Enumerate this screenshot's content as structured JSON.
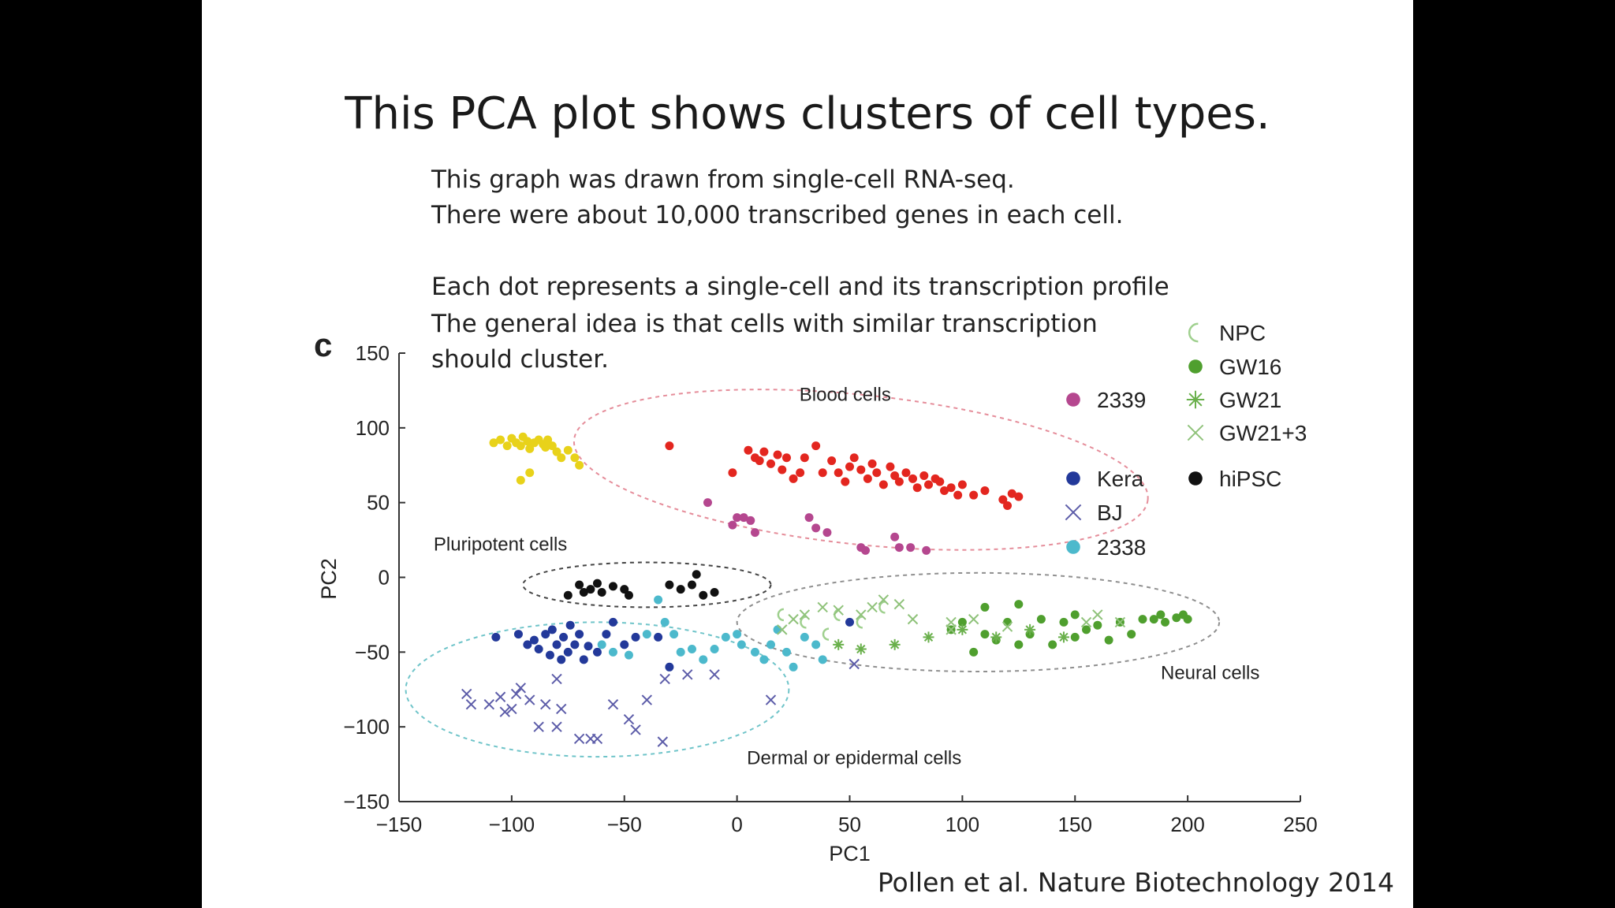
{
  "slide": {
    "title": "This PCA plot shows clusters of cell types.",
    "lines": [
      "This graph was drawn from single-cell RNA-seq.",
      "There were about 10,000 transcribed genes in each cell.",
      "Each dot represents a single-cell and its transcription profile",
      "The general idea is that cells with similar transcription",
      "should cluster."
    ],
    "citation": "Pollen et al. Nature Biotechnology 2014",
    "panel_label": "c"
  },
  "chart_data": {
    "type": "scatter",
    "title": "",
    "xlabel": "PC1",
    "ylabel": "PC2",
    "xlim": [
      -150,
      250
    ],
    "ylim": [
      -150,
      150
    ],
    "xticks": [
      -150,
      -100,
      -50,
      0,
      50,
      100,
      150,
      200,
      250
    ],
    "yticks": [
      -150,
      -100,
      -50,
      0,
      50,
      100,
      150
    ],
    "grid": false,
    "legend": {
      "placement": "top-right"
    },
    "series": [
      {
        "name": "2339",
        "marker": "dot",
        "color": "#b5478f",
        "points": [
          [
            -13,
            50
          ],
          [
            0,
            40
          ],
          [
            -2,
            35
          ],
          [
            3,
            40
          ],
          [
            6,
            38
          ],
          [
            8,
            30
          ],
          [
            32,
            40
          ],
          [
            35,
            33
          ],
          [
            40,
            30
          ],
          [
            55,
            20
          ],
          [
            57,
            18
          ],
          [
            70,
            27
          ],
          [
            72,
            20
          ],
          [
            77,
            20
          ],
          [
            84,
            18
          ]
        ]
      },
      {
        "name": "Kera",
        "marker": "dot",
        "color": "#23399a",
        "points": [
          [
            -107,
            -40
          ],
          [
            -97,
            -38
          ],
          [
            -93,
            -45
          ],
          [
            -90,
            -42
          ],
          [
            -88,
            -48
          ],
          [
            -85,
            -38
          ],
          [
            -83,
            -52
          ],
          [
            -82,
            -35
          ],
          [
            -80,
            -45
          ],
          [
            -78,
            -55
          ],
          [
            -77,
            -40
          ],
          [
            -75,
            -50
          ],
          [
            -74,
            -32
          ],
          [
            -72,
            -45
          ],
          [
            -70,
            -38
          ],
          [
            -68,
            -55
          ],
          [
            -66,
            -46
          ],
          [
            -62,
            -50
          ],
          [
            -58,
            -38
          ],
          [
            -55,
            -30
          ],
          [
            -50,
            -45
          ],
          [
            -45,
            -40
          ],
          [
            -35,
            -40
          ],
          [
            -30,
            -60
          ],
          [
            50,
            -30
          ]
        ]
      },
      {
        "name": "BJ",
        "marker": "x",
        "color": "#5d5da9",
        "points": [
          [
            -120,
            -78
          ],
          [
            -118,
            -85
          ],
          [
            -110,
            -85
          ],
          [
            -105,
            -80
          ],
          [
            -103,
            -90
          ],
          [
            -100,
            -88
          ],
          [
            -98,
            -78
          ],
          [
            -96,
            -74
          ],
          [
            -92,
            -82
          ],
          [
            -88,
            -100
          ],
          [
            -85,
            -85
          ],
          [
            -80,
            -68
          ],
          [
            -78,
            -88
          ],
          [
            -80,
            -100
          ],
          [
            -70,
            -108
          ],
          [
            -65,
            -108
          ],
          [
            -62,
            -108
          ],
          [
            -55,
            -85
          ],
          [
            -48,
            -95
          ],
          [
            -45,
            -102
          ],
          [
            -40,
            -82
          ],
          [
            -33,
            -110
          ],
          [
            -32,
            -68
          ],
          [
            -22,
            -65
          ],
          [
            -10,
            -65
          ],
          [
            15,
            -82
          ],
          [
            52,
            -58
          ]
        ]
      },
      {
        "name": "2338",
        "marker": "dot",
        "color": "#4cb9cc",
        "points": [
          [
            -60,
            -45
          ],
          [
            -55,
            -50
          ],
          [
            -48,
            -52
          ],
          [
            -40,
            -38
          ],
          [
            -32,
            -30
          ],
          [
            -28,
            -38
          ],
          [
            -25,
            -50
          ],
          [
            -20,
            -48
          ],
          [
            -15,
            -55
          ],
          [
            -10,
            -48
          ],
          [
            -5,
            -40
          ],
          [
            0,
            -38
          ],
          [
            2,
            -45
          ],
          [
            8,
            -50
          ],
          [
            12,
            -55
          ],
          [
            15,
            -45
          ],
          [
            18,
            -35
          ],
          [
            22,
            -50
          ],
          [
            25,
            -60
          ],
          [
            30,
            -40
          ],
          [
            35,
            -45
          ],
          [
            38,
            -55
          ],
          [
            -35,
            -15
          ]
        ]
      },
      {
        "name": "hiPSC",
        "marker": "dot",
        "color": "#111111",
        "points": [
          [
            -75,
            -12
          ],
          [
            -70,
            -5
          ],
          [
            -68,
            -10
          ],
          [
            -65,
            -8
          ],
          [
            -62,
            -4
          ],
          [
            -60,
            -10
          ],
          [
            -55,
            -6
          ],
          [
            -50,
            -8
          ],
          [
            -48,
            -12
          ],
          [
            -30,
            -5
          ],
          [
            -25,
            -8
          ],
          [
            -20,
            -5
          ],
          [
            -18,
            2
          ],
          [
            -15,
            -12
          ],
          [
            -10,
            -10
          ]
        ]
      },
      {
        "name": "NPC",
        "marker": "crescent",
        "color": "#9fd08e",
        "points": [
          [
            20,
            -25
          ],
          [
            30,
            -30
          ],
          [
            40,
            -38
          ],
          [
            45,
            -25
          ],
          [
            55,
            -30
          ],
          [
            65,
            -20
          ]
        ]
      },
      {
        "name": "GW16",
        "marker": "dot",
        "color": "#4f9f2e",
        "points": [
          [
            95,
            -35
          ],
          [
            100,
            -30
          ],
          [
            105,
            -50
          ],
          [
            110,
            -38
          ],
          [
            115,
            -42
          ],
          [
            120,
            -30
          ],
          [
            125,
            -45
          ],
          [
            130,
            -38
          ],
          [
            135,
            -28
          ],
          [
            140,
            -45
          ],
          [
            145,
            -30
          ],
          [
            150,
            -40
          ],
          [
            155,
            -35
          ],
          [
            160,
            -32
          ],
          [
            165,
            -42
          ],
          [
            170,
            -30
          ],
          [
            175,
            -38
          ],
          [
            180,
            -28
          ],
          [
            185,
            -28
          ],
          [
            188,
            -25
          ],
          [
            190,
            -30
          ],
          [
            195,
            -27
          ],
          [
            198,
            -25
          ],
          [
            200,
            -28
          ],
          [
            110,
            -20
          ],
          [
            125,
            -18
          ],
          [
            150,
            -25
          ]
        ]
      },
      {
        "name": "GW21",
        "marker": "asterisk",
        "color": "#6ab04c",
        "points": [
          [
            45,
            -45
          ],
          [
            55,
            -48
          ],
          [
            70,
            -45
          ],
          [
            85,
            -40
          ],
          [
            100,
            -35
          ],
          [
            115,
            -40
          ],
          [
            130,
            -35
          ],
          [
            145,
            -40
          ]
        ]
      },
      {
        "name": "GW21+3",
        "marker": "x",
        "color": "#8fc27a",
        "points": [
          [
            20,
            -35
          ],
          [
            25,
            -28
          ],
          [
            30,
            -25
          ],
          [
            38,
            -20
          ],
          [
            45,
            -22
          ],
          [
            55,
            -25
          ],
          [
            60,
            -20
          ],
          [
            65,
            -15
          ],
          [
            72,
            -18
          ],
          [
            78,
            -28
          ],
          [
            95,
            -30
          ],
          [
            105,
            -28
          ],
          [
            120,
            -33
          ],
          [
            155,
            -30
          ],
          [
            160,
            -25
          ],
          [
            170,
            -30
          ],
          [
            95,
            -35
          ]
        ]
      },
      {
        "name": "blood-yellow",
        "legend": false,
        "marker": "dot",
        "color": "#e8d21a",
        "points": [
          [
            -108,
            90
          ],
          [
            -105,
            92
          ],
          [
            -102,
            88
          ],
          [
            -100,
            93
          ],
          [
            -98,
            90
          ],
          [
            -96,
            88
          ],
          [
            -95,
            94
          ],
          [
            -93,
            91
          ],
          [
            -92,
            86
          ],
          [
            -90,
            90
          ],
          [
            -88,
            92
          ],
          [
            -86,
            89
          ],
          [
            -85,
            87
          ],
          [
            -84,
            92
          ],
          [
            -82,
            88
          ],
          [
            -80,
            84
          ],
          [
            -78,
            80
          ],
          [
            -75,
            85
          ],
          [
            -72,
            80
          ],
          [
            -70,
            75
          ],
          [
            -92,
            70
          ],
          [
            -96,
            65
          ]
        ]
      },
      {
        "name": "blood-red",
        "legend": false,
        "marker": "dot",
        "color": "#e3261f",
        "points": [
          [
            -30,
            88
          ],
          [
            -2,
            70
          ],
          [
            5,
            85
          ],
          [
            8,
            80
          ],
          [
            10,
            78
          ],
          [
            12,
            84
          ],
          [
            15,
            76
          ],
          [
            18,
            82
          ],
          [
            20,
            72
          ],
          [
            22,
            80
          ],
          [
            25,
            66
          ],
          [
            28,
            70
          ],
          [
            30,
            80
          ],
          [
            35,
            88
          ],
          [
            38,
            70
          ],
          [
            42,
            78
          ],
          [
            45,
            70
          ],
          [
            48,
            64
          ],
          [
            50,
            74
          ],
          [
            52,
            80
          ],
          [
            55,
            72
          ],
          [
            58,
            66
          ],
          [
            60,
            76
          ],
          [
            62,
            70
          ],
          [
            65,
            62
          ],
          [
            68,
            74
          ],
          [
            70,
            68
          ],
          [
            72,
            64
          ],
          [
            75,
            70
          ],
          [
            78,
            66
          ],
          [
            80,
            60
          ],
          [
            83,
            68
          ],
          [
            85,
            62
          ],
          [
            88,
            66
          ],
          [
            90,
            64
          ],
          [
            92,
            58
          ],
          [
            95,
            60
          ],
          [
            98,
            55
          ],
          [
            100,
            62
          ],
          [
            105,
            55
          ],
          [
            110,
            58
          ],
          [
            118,
            52
          ],
          [
            120,
            48
          ],
          [
            122,
            56
          ],
          [
            125,
            54
          ]
        ]
      }
    ],
    "annotations": [
      {
        "text": "Blood cells",
        "x": 48,
        "y": 118
      },
      {
        "text": "Pluripotent cells",
        "x": -105,
        "y": 18
      },
      {
        "text": "Neural cells",
        "x": 210,
        "y": -68
      },
      {
        "text": "Dermal or epidermal cells",
        "x": 52,
        "y": -125
      }
    ],
    "ellipses": [
      {
        "name": "blood-ellipse",
        "cx": 55,
        "cy": 72,
        "rx": 128,
        "ry": 50,
        "color": "#e58d9a"
      },
      {
        "name": "pluripotent-ellipse",
        "cx": -40,
        "cy": -5,
        "rx": 55,
        "ry": 15,
        "color": "#444444"
      },
      {
        "name": "neural-ellipse",
        "cx": 107,
        "cy": -30,
        "rx": 107,
        "ry": 33,
        "color": "#8f8f8f"
      },
      {
        "name": "dermal-ellipse",
        "cx": -62,
        "cy": -75,
        "rx": 85,
        "ry": 45,
        "color": "#6fc4c9"
      }
    ]
  }
}
